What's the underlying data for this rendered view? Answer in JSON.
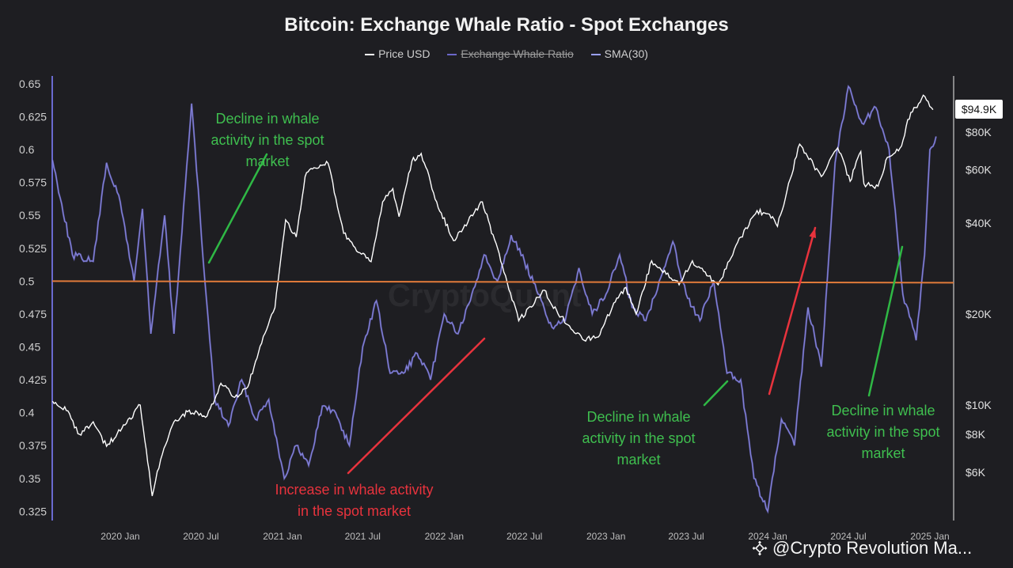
{
  "chart_data": {
    "type": "line",
    "title": "Bitcoin: Exchange Whale Ratio - Spot Exchanges",
    "legend": [
      {
        "label": "Price USD",
        "color": "#ffffff",
        "struck": false
      },
      {
        "label": "Exchange Whale Ratio",
        "color": "#6b67c9",
        "struck": true
      },
      {
        "label": "SMA(30)",
        "color": "#9aa0ff",
        "struck": false
      }
    ],
    "left_axis": {
      "ticks": [
        "0.65",
        "0.625",
        "0.6",
        "0.575",
        "0.55",
        "0.525",
        "0.5",
        "0.475",
        "0.45",
        "0.425",
        "0.4",
        "0.375",
        "0.35",
        "0.325"
      ],
      "range": [
        0.318,
        0.656
      ]
    },
    "right_axis": {
      "scale": "log",
      "ticks": [
        {
          "label": "$80K",
          "value": 80000
        },
        {
          "label": "$60K",
          "value": 60000
        },
        {
          "label": "$40K",
          "value": 40000
        },
        {
          "label": "$20K",
          "value": 20000
        },
        {
          "label": "$10K",
          "value": 10000
        },
        {
          "label": "$8K",
          "value": 8000
        },
        {
          "label": "$6K",
          "value": 6000
        }
      ]
    },
    "x_axis": {
      "labels": [
        "2020 Jan",
        "2020 Jul",
        "2021 Jan",
        "2021 Jul",
        "2022 Jan",
        "2022 Jul",
        "2023 Jan",
        "2023 Jul",
        "2024 Jan",
        "2024 Jul",
        "2025 Jan"
      ]
    },
    "reference_line": {
      "value": 0.5,
      "color": "#e07a3a"
    },
    "current_price_label": "$94.9K",
    "series": [
      {
        "name": "Price USD",
        "color": "#ffffff",
        "points": [
          [
            "2019-08-01",
            10300
          ],
          [
            "2019-09-01",
            9600
          ],
          [
            "2019-10-01",
            8000
          ],
          [
            "2019-11-01",
            8800
          ],
          [
            "2019-12-01",
            7300
          ],
          [
            "2020-01-15",
            8700
          ],
          [
            "2020-02-15",
            10000
          ],
          [
            "2020-03-13",
            5000
          ],
          [
            "2020-04-01",
            6600
          ],
          [
            "2020-05-01",
            8800
          ],
          [
            "2020-06-01",
            9500
          ],
          [
            "2020-07-15",
            9200
          ],
          [
            "2020-08-15",
            11800
          ],
          [
            "2020-09-15",
            10600
          ],
          [
            "2020-10-15",
            11500
          ],
          [
            "2020-11-15",
            16000
          ],
          [
            "2020-12-15",
            21000
          ],
          [
            "2021-01-08",
            41000
          ],
          [
            "2021-02-01",
            36000
          ],
          [
            "2021-02-21",
            57000
          ],
          [
            "2021-03-13",
            61000
          ],
          [
            "2021-04-14",
            63000
          ],
          [
            "2021-05-19",
            37000
          ],
          [
            "2021-06-21",
            32000
          ],
          [
            "2021-07-20",
            29800
          ],
          [
            "2021-08-15",
            47000
          ],
          [
            "2021-09-07",
            52000
          ],
          [
            "2021-09-21",
            42000
          ],
          [
            "2021-10-20",
            64000
          ],
          [
            "2021-11-10",
            68000
          ],
          [
            "2021-12-15",
            47000
          ],
          [
            "2022-01-22",
            35000
          ],
          [
            "2022-03-28",
            47000
          ],
          [
            "2022-05-12",
            29000
          ],
          [
            "2022-06-18",
            19000
          ],
          [
            "2022-08-15",
            24000
          ],
          [
            "2022-09-15",
            20000
          ],
          [
            "2022-11-09",
            16500
          ],
          [
            "2022-12-15",
            16800
          ],
          [
            "2023-01-15",
            21000
          ],
          [
            "2023-02-15",
            24500
          ],
          [
            "2023-03-10",
            20000
          ],
          [
            "2023-04-14",
            30000
          ],
          [
            "2023-06-15",
            25000
          ],
          [
            "2023-07-15",
            30000
          ],
          [
            "2023-09-11",
            25000
          ],
          [
            "2023-10-25",
            34500
          ],
          [
            "2023-12-08",
            44000
          ],
          [
            "2024-01-12",
            42000
          ],
          [
            "2024-01-23",
            39000
          ],
          [
            "2024-03-13",
            73000
          ],
          [
            "2024-05-01",
            57000
          ],
          [
            "2024-06-07",
            71000
          ],
          [
            "2024-07-05",
            55000
          ],
          [
            "2024-07-29",
            69000
          ],
          [
            "2024-08-05",
            54000
          ],
          [
            "2024-09-06",
            53000
          ],
          [
            "2024-09-27",
            66000
          ],
          [
            "2024-10-29",
            72000
          ],
          [
            "2024-11-12",
            88000
          ],
          [
            "2024-12-17",
            106000
          ],
          [
            "2025-01-08",
            94900
          ]
        ]
      },
      {
        "name": "SMA(30)",
        "color": "#8a88e0",
        "points": [
          [
            "2019-08-01",
            0.592
          ],
          [
            "2019-09-15",
            0.52
          ],
          [
            "2019-11-01",
            0.515
          ],
          [
            "2019-12-01",
            0.59
          ],
          [
            "2020-01-01",
            0.56
          ],
          [
            "2020-02-01",
            0.5
          ],
          [
            "2020-02-20",
            0.555
          ],
          [
            "2020-03-10",
            0.46
          ],
          [
            "2020-04-10",
            0.55
          ],
          [
            "2020-05-01",
            0.46
          ],
          [
            "2020-06-10",
            0.635
          ],
          [
            "2020-07-10",
            0.5
          ],
          [
            "2020-08-01",
            0.41
          ],
          [
            "2020-09-01",
            0.39
          ],
          [
            "2020-10-01",
            0.425
          ],
          [
            "2020-11-01",
            0.395
          ],
          [
            "2020-12-01",
            0.41
          ],
          [
            "2021-01-05",
            0.35
          ],
          [
            "2021-02-01",
            0.375
          ],
          [
            "2021-03-01",
            0.36
          ],
          [
            "2021-04-01",
            0.405
          ],
          [
            "2021-05-01",
            0.4
          ],
          [
            "2021-06-01",
            0.375
          ],
          [
            "2021-07-01",
            0.45
          ],
          [
            "2021-08-01",
            0.485
          ],
          [
            "2021-09-01",
            0.43
          ],
          [
            "2021-10-01",
            0.43
          ],
          [
            "2021-11-01",
            0.445
          ],
          [
            "2021-12-01",
            0.425
          ],
          [
            "2022-01-01",
            0.475
          ],
          [
            "2022-02-01",
            0.46
          ],
          [
            "2022-03-01",
            0.485
          ],
          [
            "2022-04-01",
            0.52
          ],
          [
            "2022-05-01",
            0.5
          ],
          [
            "2022-06-01",
            0.535
          ],
          [
            "2022-07-01",
            0.515
          ],
          [
            "2022-08-01",
            0.49
          ],
          [
            "2022-09-01",
            0.465
          ],
          [
            "2022-10-01",
            0.47
          ],
          [
            "2022-11-01",
            0.51
          ],
          [
            "2022-12-01",
            0.475
          ],
          [
            "2023-01-01",
            0.49
          ],
          [
            "2023-02-01",
            0.52
          ],
          [
            "2023-03-01",
            0.48
          ],
          [
            "2023-04-01",
            0.47
          ],
          [
            "2023-05-01",
            0.5
          ],
          [
            "2023-06-01",
            0.53
          ],
          [
            "2023-07-01",
            0.49
          ],
          [
            "2023-08-01",
            0.47
          ],
          [
            "2023-09-01",
            0.5
          ],
          [
            "2023-10-01",
            0.43
          ],
          [
            "2023-11-01",
            0.425
          ],
          [
            "2023-12-01",
            0.35
          ],
          [
            "2024-01-01",
            0.325
          ],
          [
            "2024-02-01",
            0.395
          ],
          [
            "2024-03-01",
            0.375
          ],
          [
            "2024-04-01",
            0.48
          ],
          [
            "2024-05-01",
            0.435
          ],
          [
            "2024-06-01",
            0.59
          ],
          [
            "2024-07-01",
            0.648
          ],
          [
            "2024-08-01",
            0.62
          ],
          [
            "2024-09-01",
            0.632
          ],
          [
            "2024-10-01",
            0.6
          ],
          [
            "2024-11-01",
            0.49
          ],
          [
            "2024-12-01",
            0.455
          ],
          [
            "2024-12-20",
            0.52
          ],
          [
            "2025-01-01",
            0.6
          ],
          [
            "2025-01-15",
            0.61
          ]
        ]
      }
    ],
    "annotations": [
      {
        "text": "Decline in whale\nactivity in the spot\nmarket",
        "color": "green"
      },
      {
        "text": "Increase in whale activity\nin the spot market",
        "color": "red"
      },
      {
        "text": "Decline in whale\nactivity in the spot\nmarket",
        "color": "green"
      },
      {
        "text": "Decline in whale\nactivity in the spot\nmarket",
        "color": "green"
      }
    ]
  },
  "watermark": "@Crypto Revolution Ma...",
  "faint_watermark": "CryptoQuant"
}
